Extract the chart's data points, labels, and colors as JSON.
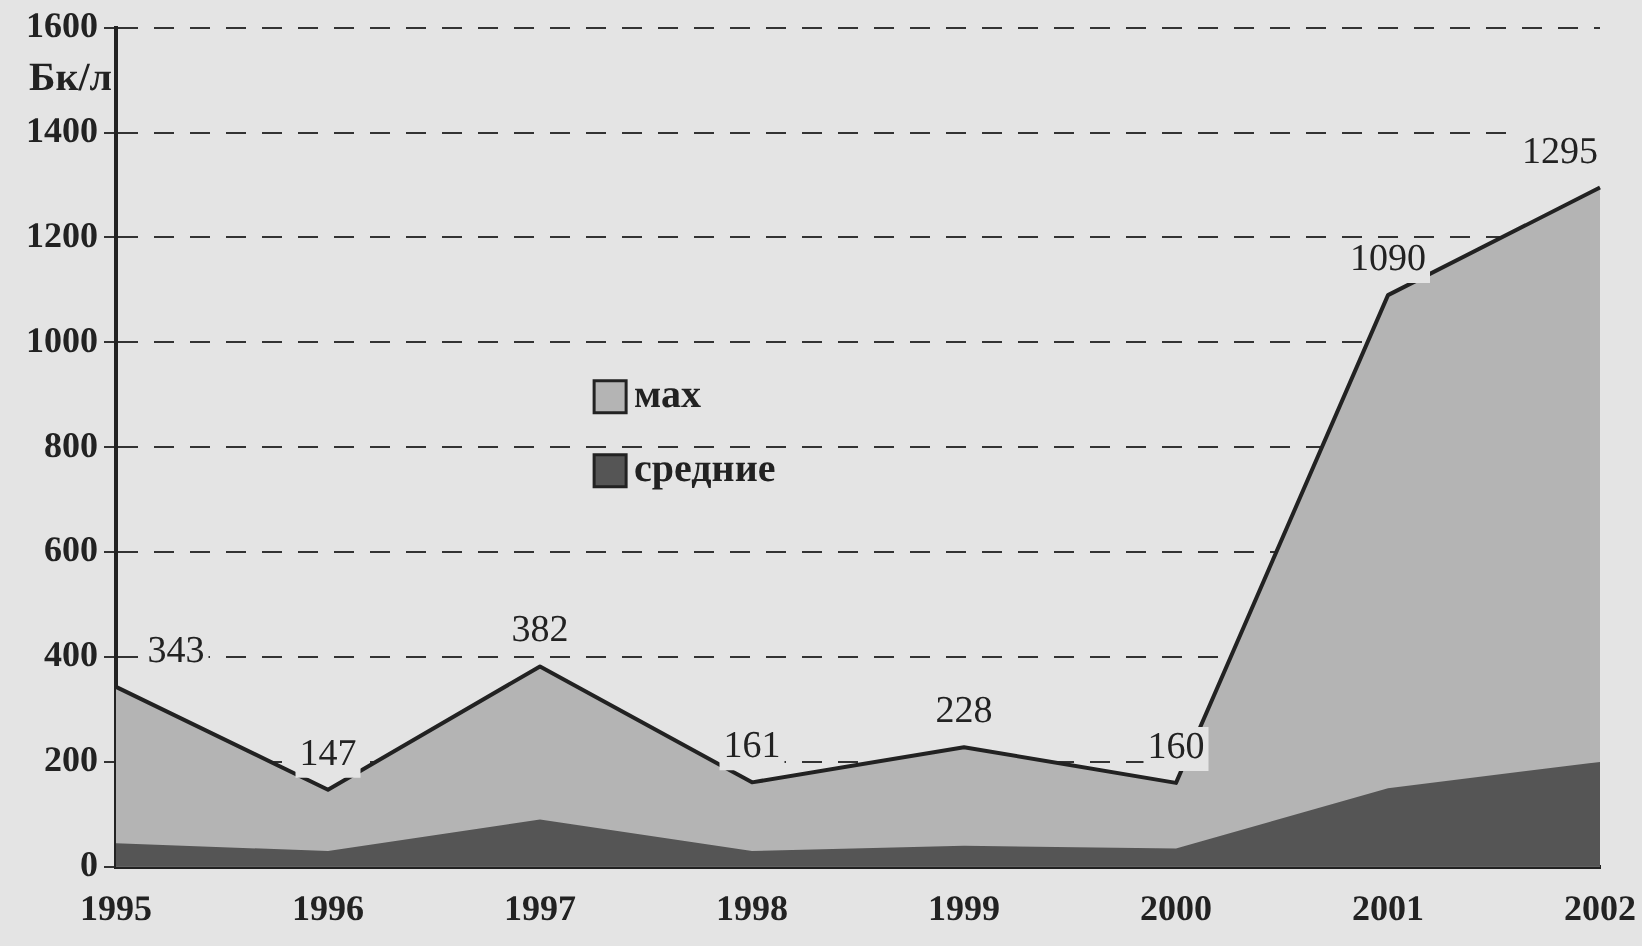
{
  "chart_data": {
    "type": "area",
    "ylabel": "Бк/л",
    "categories": [
      "1995",
      "1996",
      "1997",
      "1998",
      "1999",
      "2000",
      "2001",
      "2002"
    ],
    "series": [
      {
        "name": "мах",
        "color": "#b4b4b4",
        "values": [
          343,
          147,
          382,
          161,
          228,
          160,
          1090,
          1295
        ],
        "value_labels": [
          "343",
          "147",
          "382",
          "161",
          "228",
          "160",
          "1090",
          "1295"
        ]
      },
      {
        "name": "средние",
        "color": "#555555",
        "values": [
          45,
          30,
          90,
          30,
          40,
          35,
          150,
          200
        ]
      }
    ],
    "ylim": [
      0,
      1600
    ],
    "yticks": [
      0,
      200,
      400,
      600,
      800,
      1000,
      1200,
      1400,
      1600
    ],
    "grid": "y",
    "legend": "center",
    "line_style": "dashed"
  }
}
